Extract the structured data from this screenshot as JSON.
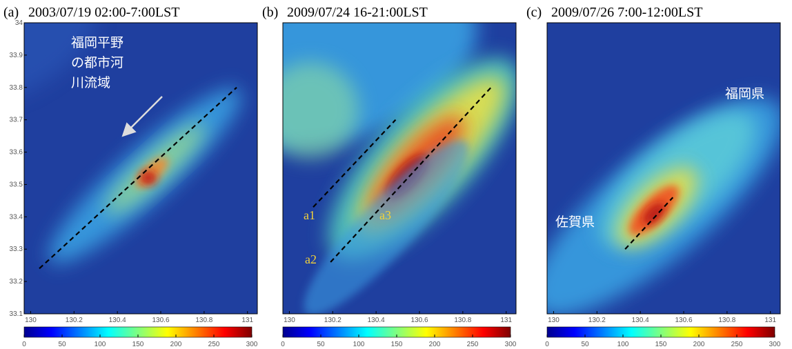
{
  "chart_data": {
    "type": "heatmap-maps",
    "xlim": [
      129.97,
      131.02
    ],
    "ylim": [
      33.1,
      34
    ],
    "xticks": [
      130,
      130.2,
      130.4,
      130.6,
      130.8,
      131
    ],
    "yticks": [
      33.1,
      33.2,
      33.3,
      33.4,
      33.5,
      33.6,
      33.7,
      33.8,
      33.9,
      34
    ],
    "colorbar": {
      "lim": [
        0,
        300
      ],
      "ticks": [
        0,
        50,
        100,
        150,
        200,
        250,
        300
      ]
    },
    "panels": [
      {
        "label": "(a)",
        "title": "2003/07/19 02:00-7:00LST",
        "lines": [
          {
            "x": [
              130.04,
              130.95
            ],
            "y": [
              33.24,
              33.8
            ]
          }
        ],
        "annotations": [
          {
            "lines": [
              "福岡平野",
              "の都市河",
              "川流域"
            ]
          }
        ]
      },
      {
        "label": "(b)",
        "title": "2009/07/24 16-21:00LST",
        "lines": [
          {
            "x": [
              130.11,
              130.49
            ],
            "y": [
              33.43,
              33.7
            ]
          },
          {
            "x": [
              130.19,
              130.93
            ],
            "y": [
              33.26,
              33.8
            ]
          }
        ],
        "annotations": [
          {
            "lines": [
              "a1"
            ]
          },
          {
            "lines": [
              "a2"
            ]
          },
          {
            "lines": [
              "a3"
            ]
          }
        ]
      },
      {
        "label": "(c)",
        "title": "2009/07/26 7:00-12:00LST",
        "lines": [
          {
            "x": [
              130.33,
              130.55
            ],
            "y": [
              33.3,
              33.46
            ]
          }
        ],
        "annotations": [
          {
            "lines": [
              "福岡県"
            ]
          },
          {
            "lines": [
              "佐賀県"
            ]
          }
        ]
      }
    ]
  }
}
